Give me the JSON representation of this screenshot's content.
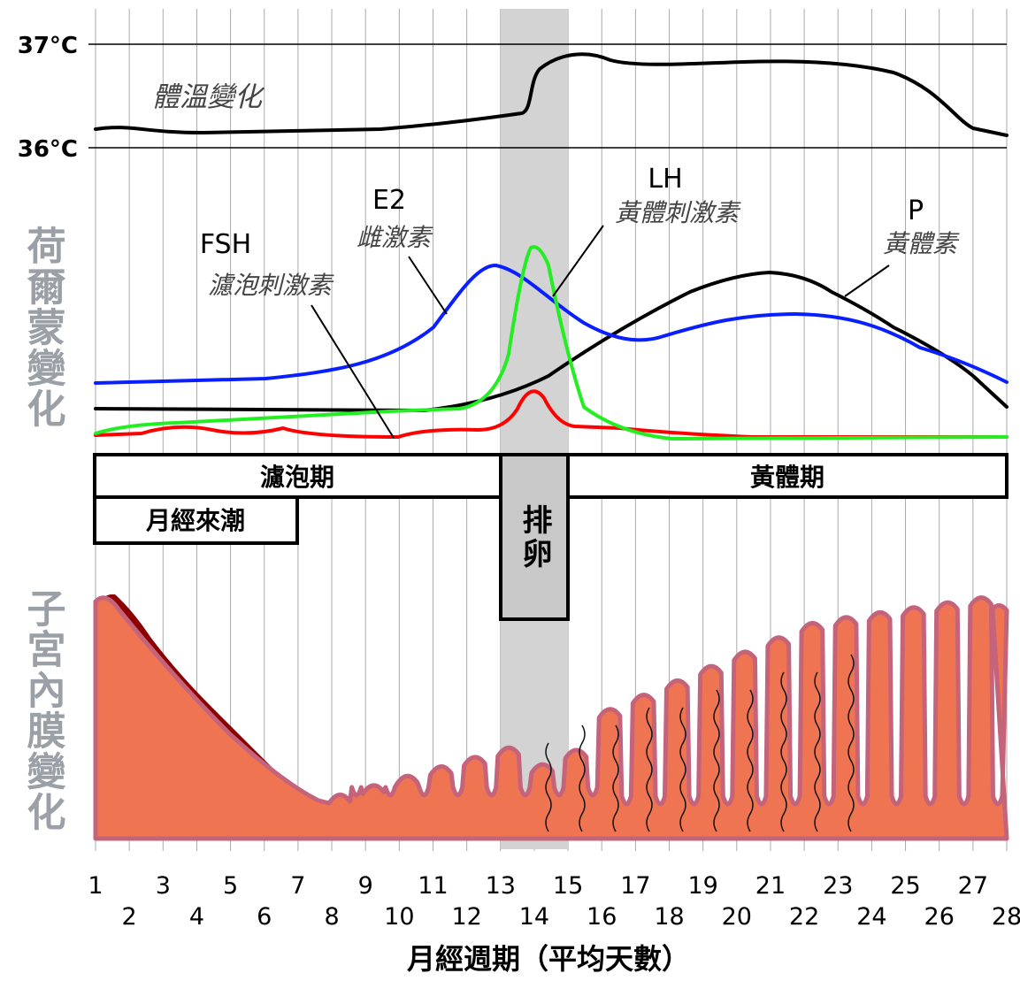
{
  "temperature": {
    "title": "體溫變化",
    "labels": [
      "37°C",
      "36°C"
    ]
  },
  "hormones": {
    "title": "荷爾蒙變化",
    "items": [
      {
        "name": "FSH",
        "desc": "濾泡刺激素"
      },
      {
        "name": "E2",
        "desc": "雌激素"
      },
      {
        "name": "LH",
        "desc": "黃體刺激素"
      },
      {
        "name": "P",
        "desc": "黃體素"
      }
    ]
  },
  "phases": {
    "follicular": "濾泡期",
    "luteal": "黃體期",
    "menstruation": "月經來潮",
    "ovulation": "排卵"
  },
  "endometrium": {
    "title": "子宮內膜變化"
  },
  "x_axis": {
    "days": [
      1,
      2,
      3,
      4,
      5,
      6,
      7,
      8,
      9,
      10,
      11,
      12,
      13,
      14,
      15,
      16,
      17,
      18,
      19,
      20,
      21,
      22,
      23,
      24,
      25,
      26,
      27,
      28
    ],
    "title": "月經週期（平均天數）"
  }
}
